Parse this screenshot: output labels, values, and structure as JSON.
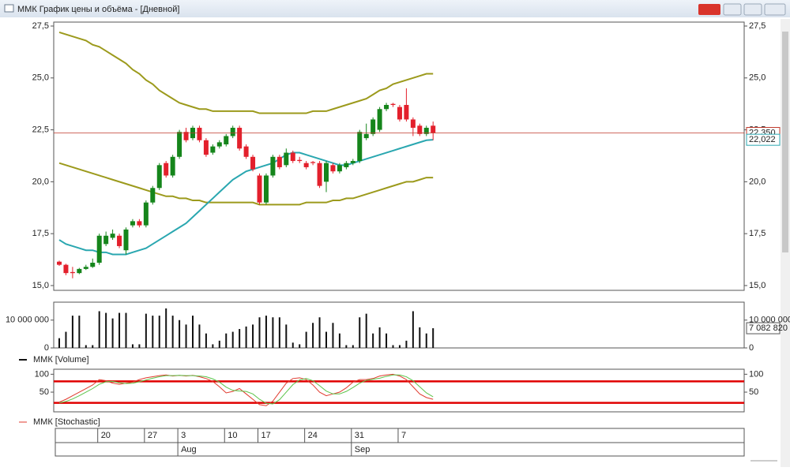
{
  "window": {
    "title": "ММК График цены и объёма - [Дневной]"
  },
  "chart_data": [
    {
      "type": "candlestick",
      "categories": [
        null,
        null,
        null,
        null,
        null,
        null,
        "20",
        null,
        null,
        null,
        null,
        null,
        null,
        "27",
        null,
        null,
        null,
        null,
        "3",
        null,
        null,
        null,
        null,
        null,
        null,
        "10",
        null,
        null,
        null,
        null,
        "17",
        null,
        null,
        null,
        null,
        null,
        null,
        "24",
        null,
        null,
        null,
        null,
        null,
        null,
        "31",
        null,
        null,
        null,
        null,
        null,
        null,
        "7",
        null,
        null,
        null,
        null,
        null
      ],
      "months": [
        null,
        null,
        null,
        null,
        null,
        null,
        null,
        null,
        null,
        null,
        null,
        null,
        null,
        null,
        null,
        null,
        null,
        null,
        "Aug",
        null,
        null,
        null,
        null,
        null,
        null,
        null,
        null,
        null,
        null,
        null,
        null,
        null,
        null,
        null,
        null,
        null,
        null,
        null,
        null,
        null,
        null,
        null,
        null,
        null,
        "Sep",
        null,
        null,
        null,
        null,
        null,
        null,
        null,
        null,
        null,
        null,
        null,
        null
      ],
      "open": [
        16.15,
        16.0,
        15.65,
        15.6,
        15.8,
        15.9,
        16.1,
        17.0,
        17.3,
        17.4,
        16.7,
        17.9,
        18.1,
        17.9,
        19.0,
        19.7,
        20.9,
        20.3,
        21.2,
        22.4,
        22.1,
        22.6,
        22.0,
        21.4,
        21.7,
        21.8,
        22.2,
        22.6,
        21.7,
        21.2,
        20.3,
        19.0,
        20.3,
        21.2,
        20.8,
        21.4,
        21.05,
        20.9,
        20.95,
        20.9,
        20.0,
        20.8,
        20.5,
        20.7,
        20.9,
        21.0,
        22.1,
        22.3,
        22.5,
        23.5,
        23.75,
        23.6,
        23.7,
        23.0,
        22.7,
        22.3,
        22.7
      ],
      "high": [
        16.2,
        16.05,
        15.9,
        15.85,
        16.0,
        16.3,
        17.5,
        17.6,
        17.7,
        17.5,
        17.8,
        18.2,
        18.2,
        19.1,
        19.8,
        20.9,
        21.0,
        21.3,
        22.5,
        22.6,
        22.7,
        22.7,
        22.1,
        21.8,
        22.0,
        22.3,
        22.7,
        22.7,
        21.8,
        21.3,
        20.4,
        20.4,
        21.3,
        21.3,
        21.6,
        21.5,
        21.2,
        21.0,
        21.0,
        21.0,
        21.0,
        20.9,
        20.9,
        21.0,
        21.1,
        22.5,
        22.8,
        23.1,
        23.6,
        23.8,
        23.8,
        23.7,
        24.5,
        23.1,
        22.8,
        22.7,
        22.9
      ],
      "low": [
        15.95,
        15.5,
        15.35,
        15.55,
        15.75,
        15.85,
        16.0,
        16.9,
        17.2,
        16.8,
        16.5,
        17.8,
        17.8,
        17.8,
        18.9,
        19.6,
        20.2,
        20.2,
        21.1,
        21.9,
        22.0,
        21.9,
        21.2,
        21.3,
        21.6,
        21.7,
        22.1,
        21.5,
        21.1,
        20.5,
        18.9,
        18.9,
        20.2,
        20.6,
        20.7,
        20.9,
        20.9,
        20.6,
        20.8,
        19.7,
        19.5,
        20.4,
        20.4,
        20.6,
        20.8,
        20.9,
        22.0,
        22.2,
        22.4,
        23.4,
        23.6,
        22.9,
        22.9,
        22.2,
        22.2,
        22.2,
        22.0
      ],
      "close": [
        16.0,
        15.6,
        15.6,
        15.8,
        15.9,
        16.1,
        17.4,
        17.4,
        17.5,
        16.9,
        17.7,
        18.1,
        17.9,
        19.0,
        19.7,
        20.8,
        20.3,
        21.2,
        22.4,
        22.0,
        22.6,
        22.0,
        21.3,
        21.7,
        21.9,
        22.2,
        22.6,
        21.6,
        21.2,
        20.6,
        19.0,
        20.3,
        21.2,
        20.7,
        21.4,
        21.0,
        21.0,
        20.7,
        20.9,
        19.8,
        20.9,
        20.5,
        20.8,
        20.9,
        21.0,
        22.4,
        22.3,
        23.0,
        23.5,
        23.7,
        23.7,
        23.0,
        23.0,
        22.6,
        22.3,
        22.6,
        22.35
      ],
      "up_color": "#15851b",
      "down_color": "#e3202c",
      "lines": [
        {
          "color": "#9c9a1c",
          "values": [
            27.2,
            27.1,
            27.0,
            26.9,
            26.8,
            26.6,
            26.5,
            26.3,
            26.1,
            25.9,
            25.7,
            25.4,
            25.2,
            24.9,
            24.7,
            24.4,
            24.2,
            24.0,
            23.8,
            23.7,
            23.6,
            23.5,
            23.5,
            23.4,
            23.4,
            23.4,
            23.4,
            23.4,
            23.4,
            23.4,
            23.3,
            23.3,
            23.3,
            23.3,
            23.3,
            23.3,
            23.3,
            23.3,
            23.4,
            23.4,
            23.4,
            23.5,
            23.6,
            23.7,
            23.8,
            23.9,
            24.0,
            24.2,
            24.4,
            24.5,
            24.7,
            24.8,
            24.9,
            25.0,
            25.1,
            25.2,
            25.2
          ]
        },
        {
          "color": "#9c9a1c",
          "values": [
            20.9,
            20.8,
            20.7,
            20.6,
            20.5,
            20.4,
            20.3,
            20.2,
            20.1,
            20.0,
            19.9,
            19.8,
            19.7,
            19.6,
            19.5,
            19.4,
            19.3,
            19.3,
            19.2,
            19.2,
            19.1,
            19.1,
            19.0,
            19.0,
            19.0,
            19.0,
            19.0,
            19.0,
            19.0,
            19.0,
            18.9,
            18.9,
            18.9,
            18.9,
            18.9,
            18.9,
            18.9,
            19.0,
            19.0,
            19.0,
            19.0,
            19.1,
            19.1,
            19.2,
            19.2,
            19.3,
            19.4,
            19.5,
            19.6,
            19.7,
            19.8,
            19.9,
            20.0,
            20.0,
            20.1,
            20.2,
            20.2
          ]
        },
        {
          "color": "#2aa7b0",
          "values": [
            17.2,
            17.0,
            16.9,
            16.8,
            16.7,
            16.7,
            16.6,
            16.6,
            16.5,
            16.5,
            16.5,
            16.6,
            16.7,
            16.8,
            17.0,
            17.2,
            17.4,
            17.6,
            17.8,
            18.0,
            18.3,
            18.6,
            18.9,
            19.2,
            19.5,
            19.8,
            20.1,
            20.3,
            20.5,
            20.6,
            20.7,
            20.8,
            20.9,
            21.1,
            21.3,
            21.4,
            21.4,
            21.3,
            21.2,
            21.1,
            21.0,
            20.9,
            20.8,
            20.8,
            20.9,
            21.0,
            21.1,
            21.2,
            21.3,
            21.4,
            21.5,
            21.6,
            21.7,
            21.8,
            21.9,
            22.0,
            22.022
          ]
        }
      ],
      "markers": [
        {
          "value": 22.35,
          "label": "22,350",
          "color": "#c0392b"
        },
        {
          "value": 22.022,
          "label": "22,022",
          "color": "#2aa7b0"
        }
      ],
      "ylim": [
        14.77,
        27.69
      ],
      "yticks": [
        {
          "value": 27.5,
          "label": "27,5"
        },
        {
          "value": 25.0,
          "label": "25,0"
        },
        {
          "value": 22.5,
          "label": "22,5"
        },
        {
          "value": 20.0,
          "label": "20,0"
        },
        {
          "value": 17.5,
          "label": "17,5"
        },
        {
          "value": 15.0,
          "label": "15,0"
        }
      ]
    },
    {
      "type": "bar",
      "legend": "ММК [Volume]",
      "color": "#111111",
      "values": [
        3500000,
        5800000,
        11600000,
        11600000,
        1000000,
        1000000,
        13200000,
        12600000,
        10600000,
        12600000,
        12600000,
        1300000,
        1300000,
        12300000,
        11600000,
        11600000,
        14200000,
        11600000,
        10000000,
        8400000,
        11600000,
        8400000,
        5200000,
        1300000,
        2600000,
        5200000,
        5800000,
        6800000,
        7700000,
        8400000,
        11000000,
        11600000,
        11000000,
        11000000,
        8400000,
        1900000,
        1300000,
        5800000,
        9000000,
        11000000,
        5800000,
        9000000,
        5200000,
        1000000,
        1000000,
        11000000,
        12300000,
        5200000,
        7400000,
        5200000,
        1000000,
        1000000,
        2600000,
        13200000,
        7400000,
        5200000,
        7082820
      ],
      "markers": [
        {
          "value": 7082820,
          "label": "7 082 820"
        }
      ],
      "ylim": [
        0,
        16450000
      ],
      "yticks": [
        {
          "value": 10000000,
          "label": "10 000 000"
        },
        0
      ]
    },
    {
      "type": "line",
      "legend": "ММК [Stochastic]",
      "series": [
        {
          "color": "#e03a2e",
          "values": [
            22,
            30,
            40,
            50,
            60,
            70,
            85,
            82,
            75,
            72,
            75,
            78,
            85,
            90,
            93,
            96,
            98,
            95,
            97,
            95,
            97,
            93,
            88,
            80,
            65,
            48,
            52,
            60,
            45,
            30,
            15,
            12,
            25,
            50,
            75,
            88,
            90,
            85,
            70,
            50,
            40,
            45,
            50,
            62,
            78,
            85,
            85,
            88,
            95,
            98,
            100,
            95,
            85,
            65,
            45,
            35,
            30
          ]
        },
        {
          "color": "#5cc44a",
          "values": [
            20,
            24,
            31,
            40,
            50,
            60,
            72,
            79,
            80,
            76,
            74,
            75,
            79,
            84,
            89,
            93,
            96,
            96,
            97,
            96,
            96,
            95,
            93,
            87,
            78,
            64,
            55,
            53,
            52,
            45,
            30,
            19,
            17,
            29,
            50,
            71,
            84,
            88,
            82,
            68,
            53,
            45,
            45,
            52,
            63,
            75,
            83,
            86,
            89,
            94,
            98,
            98,
            93,
            82,
            65,
            48,
            37
          ]
        }
      ],
      "levels": [
        80,
        20
      ],
      "level_color": "#e00000",
      "ylim": [
        -5,
        114
      ],
      "yticks": [
        100,
        50
      ]
    }
  ]
}
